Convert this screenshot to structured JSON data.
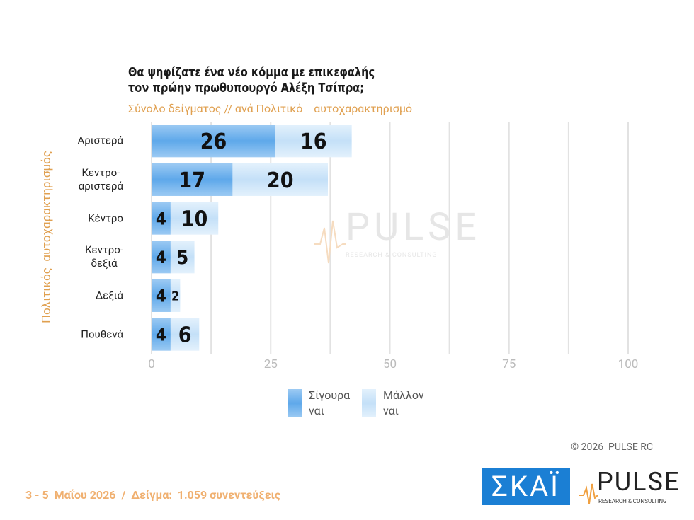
{
  "chart_data": {
    "type": "stacked-hbar",
    "title": "Θα ψηφίζατε ένα νέο κόμμα με επικεφαλής\nτον πρώην πρωθυπουργό Αλέξη Τσίπρα;",
    "subtitle": "Σύνολο δείγματος // ανά Πολιτικό    αυτοχαρακτηρισμό",
    "y_label": "Πολιτικός  αυτοχαρακτηρισμός",
    "categories": [
      "Αριστερά",
      "Κεντρο-\nαριστερά",
      "Κέντρο",
      "Κεντρο-\nδεξιά",
      "Δεξιά",
      "Πουθενά"
    ],
    "series": [
      {
        "name": "Σίγουρα\nναι",
        "color": "#5ea8ea",
        "values": [
          26,
          17,
          4,
          4,
          4,
          4
        ]
      },
      {
        "name": "Μάλλον\nναι",
        "color": "#c4e0f8",
        "values": [
          16,
          20,
          10,
          5,
          2,
          6
        ]
      }
    ],
    "xlim": [
      0,
      100
    ],
    "xticks": [
      0,
      25,
      50,
      75,
      100
    ],
    "minor_xticks": [
      12.5,
      37.5,
      62.5,
      87.5
    ],
    "grid": true
  },
  "copyright": "© 2026  PULSE RC",
  "footer": "3 - 5  Μαΐου 2026  /  Δείγμα:  1.059 συνεντεύξεις",
  "skai_logo": "ΣΚΑΪ",
  "pulse_logo": "PULSE",
  "pulse_tagline": "RESEARCH & CONSULTING"
}
